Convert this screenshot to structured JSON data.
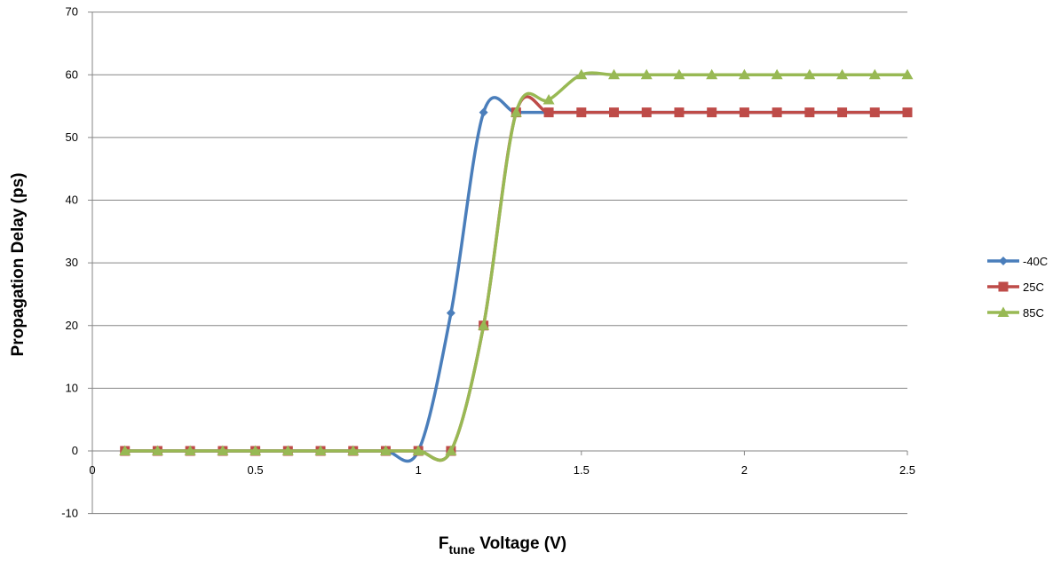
{
  "chart_data": {
    "type": "line",
    "title": "",
    "xlabel_main": "F",
    "xlabel_sub": "tune",
    "xlabel_rest": " Voltage (V)",
    "ylabel": "Propagation Delay (ps)",
    "xlim": [
      0,
      2.5
    ],
    "ylim": [
      -10,
      70
    ],
    "xticks": [
      0,
      0.5,
      1,
      1.5,
      2,
      2.5
    ],
    "xtick_labels": [
      "0",
      "0.5",
      "1",
      "1.5",
      "2",
      "2.5"
    ],
    "yticks": [
      -10,
      0,
      10,
      20,
      30,
      40,
      50,
      60,
      70
    ],
    "ytick_labels": [
      "-10",
      "0",
      "10",
      "20",
      "30",
      "40",
      "50",
      "60",
      "70"
    ],
    "grid": "horizontal",
    "legend_position": "right",
    "x": [
      0.1,
      0.2,
      0.3,
      0.4,
      0.5,
      0.6,
      0.7,
      0.8,
      0.9,
      1.0,
      1.1,
      1.2,
      1.3,
      1.4,
      1.5,
      1.6,
      1.7,
      1.8,
      1.9,
      2.0,
      2.1,
      2.2,
      2.3,
      2.4,
      2.5
    ],
    "series": [
      {
        "name": "-40C",
        "color": "#4a7ebb",
        "marker": "diamond",
        "values": [
          0,
          0,
          0,
          0,
          0,
          0,
          0,
          0,
          0,
          0,
          22,
          54,
          54,
          54,
          54,
          54,
          54,
          54,
          54,
          54,
          54,
          54,
          54,
          54,
          54
        ]
      },
      {
        "name": "25C",
        "color": "#be4b48",
        "marker": "square",
        "values": [
          0,
          0,
          0,
          0,
          0,
          0,
          0,
          0,
          0,
          0,
          0,
          20,
          54,
          54,
          54,
          54,
          54,
          54,
          54,
          54,
          54,
          54,
          54,
          54,
          54
        ]
      },
      {
        "name": "85C",
        "color": "#98b954",
        "marker": "triangle",
        "values": [
          0,
          0,
          0,
          0,
          0,
          0,
          0,
          0,
          0,
          0,
          0,
          20,
          54,
          56,
          60,
          60,
          60,
          60,
          60,
          60,
          60,
          60,
          60,
          60,
          60
        ]
      }
    ]
  }
}
